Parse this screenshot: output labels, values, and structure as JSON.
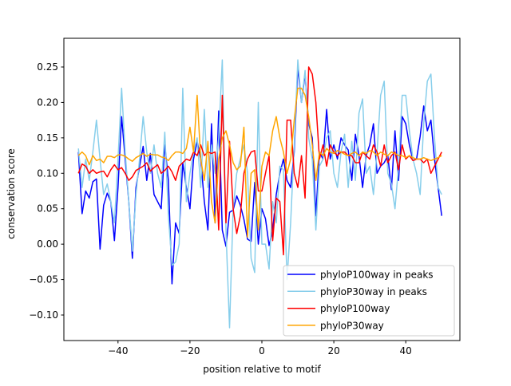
{
  "chart_data": {
    "type": "line",
    "title": "",
    "xlabel": "position relative to motif",
    "ylabel": "conservation score",
    "x_range": [
      -51,
      50
    ],
    "xlim": [
      -55.05,
      55.05
    ],
    "ylim": [
      -0.136,
      0.2905
    ],
    "xticks": [
      -40,
      -20,
      0,
      20,
      40
    ],
    "xtick_labels": [
      "−40",
      "−20",
      "0",
      "20",
      "40"
    ],
    "yticks": [
      0.25,
      0.2,
      0.15,
      0.1,
      0.05,
      0.0,
      -0.05,
      -0.1
    ],
    "ytick_labels": [
      "0.25",
      "0.20",
      "0.15",
      "0.10",
      "0.05",
      "0.00",
      "−0.05",
      "−0.10"
    ],
    "grid": false,
    "legend_position": "bottom-right",
    "series": [
      {
        "name": "phyloP100way in peaks",
        "color": "#0000ff",
        "values": [
          0.13,
          0.043,
          0.075,
          0.065,
          0.088,
          0.092,
          -0.007,
          0.055,
          0.072,
          0.06,
          0.005,
          0.08,
          0.18,
          0.12,
          0.06,
          -0.02,
          0.08,
          0.11,
          0.138,
          0.09,
          0.128,
          0.07,
          0.06,
          0.05,
          0.14,
          0.09,
          -0.056,
          0.03,
          0.015,
          0.115,
          0.08,
          0.05,
          0.12,
          0.145,
          0.12,
          0.06,
          0.02,
          0.17,
          0.03,
          0.188,
          0.02,
          -0.003,
          0.045,
          0.048,
          0.068,
          0.055,
          0.035,
          0.007,
          0.004,
          0.087,
          0.0,
          0.05,
          0.036,
          -0.002,
          0.02,
          0.07,
          0.1,
          0.12,
          0.09,
          0.08,
          0.13,
          0.25,
          0.2,
          0.24,
          0.17,
          0.15,
          0.04,
          0.13,
          0.12,
          0.19,
          0.12,
          0.14,
          0.12,
          0.15,
          0.14,
          0.133,
          0.09,
          0.155,
          0.125,
          0.08,
          0.125,
          0.14,
          0.17,
          0.1,
          0.11,
          0.115,
          0.125,
          0.077,
          0.16,
          0.09,
          0.18,
          0.17,
          0.14,
          0.118,
          0.12,
          0.152,
          0.195,
          0.16,
          0.175,
          0.12,
          0.08,
          0.04
        ]
      },
      {
        "name": "phyloP30way in peaks",
        "color": "#87ceeb",
        "values": [
          0.135,
          0.08,
          0.12,
          0.09,
          0.13,
          0.175,
          0.12,
          0.07,
          0.085,
          0.06,
          0.03,
          0.12,
          0.22,
          0.13,
          0.06,
          -0.01,
          0.07,
          0.12,
          0.18,
          0.13,
          0.1,
          0.14,
          0.1,
          0.08,
          0.158,
          0.04,
          -0.03,
          -0.025,
          0.0,
          0.22,
          0.06,
          0.1,
          0.13,
          0.15,
          0.08,
          0.19,
          0.08,
          0.14,
          0.1,
          0.15,
          0.26,
          0.02,
          -0.118,
          0.05,
          0.1,
          0.12,
          0.14,
          0.1,
          -0.02,
          -0.04,
          0.2,
          0.0,
          0.0,
          -0.035,
          0.06,
          0.03,
          0.11,
          0.105,
          -0.05,
          0.03,
          0.14,
          0.26,
          0.2,
          0.245,
          0.15,
          0.12,
          0.02,
          0.11,
          0.12,
          0.15,
          0.16,
          0.1,
          0.08,
          0.13,
          0.155,
          0.08,
          0.145,
          0.09,
          0.185,
          0.205,
          0.1,
          0.11,
          0.07,
          0.13,
          0.21,
          0.23,
          0.1,
          0.085,
          0.05,
          0.11,
          0.21,
          0.21,
          0.16,
          0.12,
          0.1,
          0.07,
          0.17,
          0.23,
          0.24,
          0.15,
          0.08,
          0.07
        ]
      },
      {
        "name": "phyloP100way",
        "color": "#ff0000",
        "values": [
          0.1,
          0.113,
          0.11,
          0.1,
          0.105,
          0.1,
          0.102,
          0.103,
          0.095,
          0.105,
          0.112,
          0.105,
          0.108,
          0.1,
          0.09,
          0.095,
          0.104,
          0.107,
          0.11,
          0.115,
          0.103,
          0.108,
          0.112,
          0.1,
          0.104,
          0.11,
          0.102,
          0.09,
          0.11,
          0.115,
          0.12,
          0.118,
          0.13,
          0.125,
          0.14,
          0.125,
          0.13,
          0.128,
          0.13,
          0.02,
          0.21,
          0.03,
          0.145,
          0.05,
          0.015,
          0.04,
          0.1,
          0.12,
          0.13,
          0.132,
          0.075,
          0.075,
          0.1,
          0.125,
          0.005,
          0.065,
          0.06,
          -0.015,
          0.175,
          0.175,
          0.1,
          0.08,
          0.125,
          0.065,
          0.25,
          0.24,
          0.2,
          0.12,
          0.14,
          0.11,
          0.14,
          0.13,
          0.125,
          0.13,
          0.13,
          0.125,
          0.125,
          0.115,
          0.115,
          0.13,
          0.125,
          0.12,
          0.14,
          0.13,
          0.11,
          0.14,
          0.115,
          0.125,
          0.13,
          0.105,
          0.14,
          0.12,
          0.125,
          0.118,
          0.12,
          0.12,
          0.115,
          0.12,
          0.1,
          0.11,
          0.12,
          0.13
        ]
      },
      {
        "name": "phyloP30way",
        "color": "#ffa500",
        "values": [
          0.125,
          0.13,
          0.125,
          0.112,
          0.125,
          0.118,
          0.12,
          0.115,
          0.124,
          0.124,
          0.122,
          0.126,
          0.126,
          0.124,
          0.12,
          0.117,
          0.122,
          0.125,
          0.128,
          0.124,
          0.127,
          0.126,
          0.126,
          0.123,
          0.122,
          0.118,
          0.125,
          0.13,
          0.13,
          0.128,
          0.135,
          0.165,
          0.13,
          0.21,
          0.12,
          0.09,
          0.145,
          0.06,
          0.03,
          0.12,
          0.15,
          0.16,
          0.14,
          0.115,
          0.105,
          0.11,
          0.165,
          0.01,
          0.1,
          0.105,
          0.02,
          0.11,
          0.13,
          0.125,
          0.16,
          0.18,
          0.15,
          0.13,
          0.1,
          0.12,
          0.175,
          0.22,
          0.22,
          0.21,
          0.18,
          0.14,
          0.09,
          0.13,
          0.125,
          0.135,
          0.13,
          0.128,
          0.132,
          0.13,
          0.127,
          0.125,
          0.128,
          0.13,
          0.125,
          0.13,
          0.128,
          0.132,
          0.13,
          0.125,
          0.13,
          0.127,
          0.125,
          0.13,
          0.128,
          0.125,
          0.125,
          0.122,
          0.125,
          0.122,
          0.12,
          0.12,
          0.122,
          0.12,
          0.118,
          0.12,
          0.122,
          0.125
        ]
      }
    ]
  }
}
